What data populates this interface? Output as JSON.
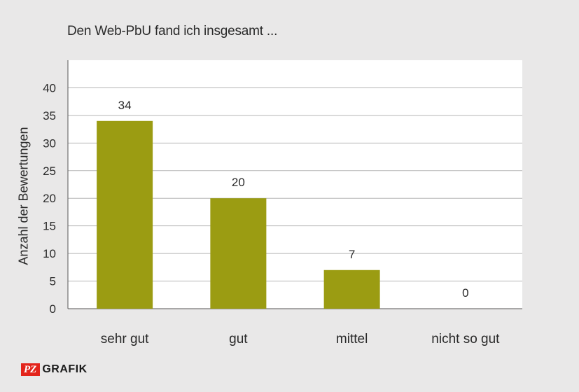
{
  "chart_data": {
    "type": "bar",
    "title": "Den Web-PbU fand ich insgesamt ...",
    "ylabel": "Anzahl der Bewertungen",
    "xlabel": "",
    "categories": [
      "sehr gut",
      "gut",
      "mittel",
      "nicht so gut"
    ],
    "values": [
      34,
      20,
      7,
      0
    ],
    "data_labels": [
      "34",
      "20",
      "7",
      "0"
    ],
    "yticks": [
      "0",
      "5",
      "10",
      "15",
      "20",
      "25",
      "30",
      "35",
      "40"
    ],
    "ylim": [
      0,
      45
    ],
    "grid": true,
    "bar_color": "#9b9c12",
    "plot_background": "#ffffff",
    "page_background": "#e9e8e8"
  },
  "logo": {
    "badge": "PZ",
    "text": "GRAFIK",
    "badge_color": "#e3241b"
  }
}
